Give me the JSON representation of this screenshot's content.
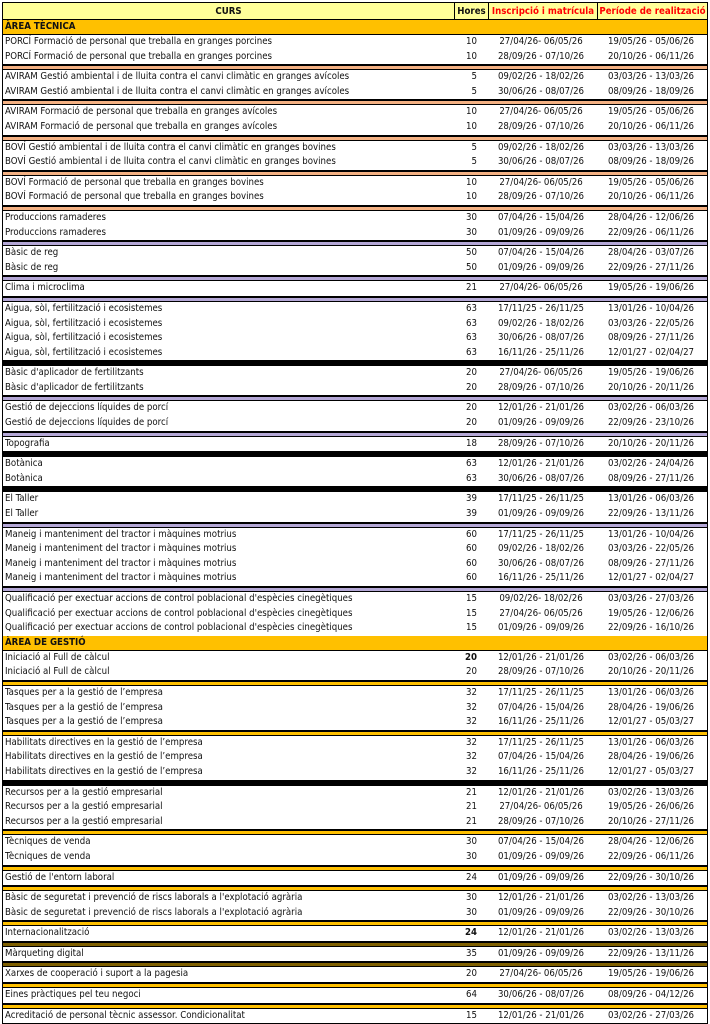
{
  "header": {
    "curs": "CURS",
    "hores": "Hores",
    "inscripcio": "Inscripció i matrícula",
    "periode": "Període de realització"
  },
  "colors": {
    "header_bg": "#ffff99",
    "section_bg": "#ffc000",
    "header_red": "#ff0000"
  },
  "sections": [
    {
      "title": "ÀREA TÈCNICA",
      "groups": [
        {
          "sep": "#f4b183",
          "rows": [
            {
              "curs": "PORCÍ Formació de personal que treballa en granges porcines",
              "hores": "10",
              "inscripcio": "27/04/26- 06/05/26",
              "periode": "19/05/26 - 05/06/26"
            },
            {
              "curs": "PORCÍ Formació de personal que treballa en granges porcines",
              "hores": "10",
              "inscripcio": "28/09/26 - 07/10/26",
              "periode": "20/10/26 - 06/11/26"
            }
          ]
        },
        {
          "sep": "#f4b183",
          "rows": [
            {
              "curs": "AVIRAM Gestió ambiental i de lluita contra el canvi climàtic en granges avícoles",
              "hores": "5",
              "inscripcio": "09/02/26 - 18/02/26",
              "periode": "03/03/26 - 13/03/26"
            },
            {
              "curs": "AVIRAM Gestió ambiental i de lluita contra el canvi climàtic en granges avícoles",
              "hores": "5",
              "inscripcio": "30/06/26 - 08/07/26",
              "periode": "08/09/26 - 18/09/26"
            }
          ]
        },
        {
          "sep": "#f4b183",
          "rows": [
            {
              "curs": "AVIRAM Formació de personal que treballa en granges avícoles",
              "hores": "10",
              "inscripcio": "27/04/26- 06/05/26",
              "periode": "19/05/26 - 05/06/26"
            },
            {
              "curs": "AVIRAM Formació de personal que treballa en granges avícoles",
              "hores": "10",
              "inscripcio": "28/09/26 - 07/10/26",
              "periode": "20/10/26 - 06/11/26"
            }
          ]
        },
        {
          "sep": "#f4b183",
          "rows": [
            {
              "curs": "BOVÍ Gestió ambiental i de lluita contra el canvi climàtic en granges bovines",
              "hores": "5",
              "inscripcio": "09/02/26 - 18/02/26",
              "periode": "03/03/26 - 13/03/26"
            },
            {
              "curs": "BOVÍ Gestió ambiental i de lluita contra el canvi climàtic en granges bovines",
              "hores": "5",
              "inscripcio": "30/06/26 - 08/07/26",
              "periode": "08/09/26 - 18/09/26"
            }
          ]
        },
        {
          "sep": "#f4b183",
          "rows": [
            {
              "curs": "BOVÍ Formació de personal que treballa en granges bovines",
              "hores": "10",
              "inscripcio": "27/04/26- 06/05/26",
              "periode": "19/05/26 - 05/06/26"
            },
            {
              "curs": "BOVÍ Formació de personal que treballa en granges bovines",
              "hores": "10",
              "inscripcio": "28/09/26 - 07/10/26",
              "periode": "20/10/26 - 06/11/26"
            }
          ]
        },
        {
          "sep": "#b4a7d6",
          "rows": [
            {
              "curs": "Produccions ramaderes",
              "hores": "30",
              "inscripcio": "07/04/26 - 15/04/26",
              "periode": "28/04/26 - 12/06/26"
            },
            {
              "curs": "Produccions ramaderes",
              "hores": "30",
              "inscripcio": "01/09/26 - 09/09/26",
              "periode": "22/09/26 - 06/11/26"
            }
          ]
        },
        {
          "sep": "#b4a7d6",
          "rows": [
            {
              "curs": "Bàsic de reg",
              "hores": "50",
              "inscripcio": "07/04/26 - 15/04/26",
              "periode": "28/04/26 - 03/07/26"
            },
            {
              "curs": "Bàsic de reg",
              "hores": "50",
              "inscripcio": "01/09/26 - 09/09/26",
              "periode": "22/09/26 - 27/11/26"
            }
          ]
        },
        {
          "sep": "#b4a7d6",
          "rows": [
            {
              "curs": "Clima i microclima",
              "hores": "21",
              "inscripcio": "27/04/26- 06/05/26",
              "periode": "19/05/26 - 19/06/26"
            }
          ]
        },
        {
          "sep": "#000000",
          "rows": [
            {
              "curs": "Aigua, sòl, fertilització i ecosistemes",
              "hores": "63",
              "inscripcio": "17/11/25 - 26/11/25",
              "periode": "13/01/26 - 10/04/26"
            },
            {
              "curs": "Aigua, sòl, fertilització i ecosistemes",
              "hores": "63",
              "inscripcio": "09/02/26 - 18/02/26",
              "periode": "03/03/26 - 22/05/26"
            },
            {
              "curs": "Aigua, sòl, fertilització i ecosistemes",
              "hores": "63",
              "inscripcio": "30/06/26 - 08/07/26",
              "periode": "08/09/26 - 27/11/26"
            },
            {
              "curs": "Aigua, sòl, fertilització i ecosistemes",
              "hores": "63",
              "inscripcio": "16/11/26 - 25/11/26",
              "periode": "12/01/27 - 02/04/27"
            }
          ]
        },
        {
          "sep": "#b4a7d6",
          "rows": [
            {
              "curs": "Bàsic d'aplicador de fertilitzants",
              "hores": "20",
              "inscripcio": "27/04/26- 06/05/26",
              "periode": "19/05/26 - 19/06/26"
            },
            {
              "curs": "Bàsic d'aplicador de fertilitzants",
              "hores": "20",
              "inscripcio": "28/09/26 - 07/10/26",
              "periode": "20/10/26 - 20/11/26"
            }
          ]
        },
        {
          "sep": "#b4a7d6",
          "rows": [
            {
              "curs": "Gestió de dejeccions líquides de porcí",
              "hores": "20",
              "inscripcio": "12/01/26 - 21/01/26",
              "periode": "03/02/26 - 06/03/26"
            },
            {
              "curs": "Gestió de dejeccions líquides de porcí",
              "hores": "20",
              "inscripcio": "01/09/26 - 09/09/26",
              "periode": "22/09/26 - 23/10/26"
            }
          ]
        },
        {
          "sep": "#000000",
          "rows": [
            {
              "curs": "Topografia",
              "hores": "18",
              "inscripcio": "28/09/26 - 07/10/26",
              "periode": "20/10/26 - 20/11/26"
            }
          ]
        },
        {
          "sep": "#000000",
          "rows": [
            {
              "curs": "Botànica",
              "hores": "63",
              "inscripcio": "12/01/26 - 21/01/26",
              "periode": "03/02/26 - 24/04/26"
            },
            {
              "curs": "Botànica",
              "hores": "63",
              "inscripcio": "30/06/26 - 08/07/26",
              "periode": "08/09/26 - 27/11/26"
            }
          ]
        },
        {
          "sep": "#b4a7d6",
          "rows": [
            {
              "curs": "El Taller",
              "hores": "39",
              "inscripcio": "17/11/25 - 26/11/25",
              "periode": "13/01/26 - 06/03/26"
            },
            {
              "curs": "El Taller",
              "hores": "39",
              "inscripcio": "01/09/26 - 09/09/26",
              "periode": "22/09/26 - 13/11/26"
            }
          ]
        },
        {
          "sep": "#b4a7d6",
          "rows": [
            {
              "curs": "Maneig i manteniment del tractor i màquines motrius",
              "hores": "60",
              "inscripcio": "17/11/25 - 26/11/25",
              "periode": "13/01/26 - 10/04/26"
            },
            {
              "curs": "Maneig i manteniment del tractor i màquines motrius",
              "hores": "60",
              "inscripcio": "09/02/26 - 18/02/26",
              "periode": "03/03/26 - 22/05/26"
            },
            {
              "curs": "Maneig i manteniment del tractor i màquines motrius",
              "hores": "60",
              "inscripcio": "30/06/26 - 08/07/26",
              "periode": "08/09/26 - 27/11/26"
            },
            {
              "curs": "Maneig i manteniment del tractor i màquines motrius",
              "hores": "60",
              "inscripcio": "16/11/26 - 25/11/26",
              "periode": "12/01/27 - 02/04/27"
            }
          ]
        },
        {
          "sep": "",
          "rows": [
            {
              "curs": "Qualificació per exectuar accions de control  poblacional d'espècies cinegètiques",
              "hores": "15",
              "inscripcio": "09/02/26- 18/02/26",
              "periode": "03/03/26 - 27/03/26"
            },
            {
              "curs": "Qualificació per exectuar accions de control  poblacional d'espècies cinegètiques",
              "hores": "15",
              "inscripcio": "27/04/26- 06/05/26",
              "periode": "19/05/26 - 12/06/26"
            },
            {
              "curs": "Qualificació per exectuar accions de control  poblacional d'espècies cinegètiques",
              "hores": "15",
              "inscripcio": "01/09/26 - 09/09/26",
              "periode": "22/09/26 - 16/10/26"
            }
          ]
        }
      ]
    },
    {
      "title": "ÀREA DE GESTIÓ",
      "groups": [
        {
          "sep": "#ffc000",
          "rows": [
            {
              "curs": "Iniciació al Full de càlcul",
              "hores": "20",
              "bold": true,
              "inscripcio": "12/01/26 - 21/01/26",
              "periode": "03/02/26 - 06/03/26"
            },
            {
              "curs": "Iniciació al Full de càlcul",
              "hores": "20",
              "inscripcio": "28/09/26 - 07/10/26",
              "periode": "20/10/26 - 20/11/26"
            }
          ]
        },
        {
          "sep": "#ffc000",
          "rows": [
            {
              "curs": "Tasques per a la gestió de l’empresa",
              "hores": "32",
              "inscripcio": "17/11/25 - 26/11/25",
              "periode": "13/01/26 - 06/03/26"
            },
            {
              "curs": "Tasques per a la gestió de l’empresa",
              "hores": "32",
              "inscripcio": "07/04/26 - 15/04/26",
              "periode": "28/04/26 - 19/06/26"
            },
            {
              "curs": "Tasques per a la gestió de l’empresa",
              "hores": "32",
              "inscripcio": "16/11/26 - 25/11/26",
              "periode": "12/01/27 - 05/03/27"
            }
          ]
        },
        {
          "sep": "#000000",
          "rows": [
            {
              "curs": "Habilitats directives en la gestió de l’empresa",
              "hores": "32",
              "inscripcio": "17/11/25 - 26/11/25",
              "periode": "13/01/26 - 06/03/26"
            },
            {
              "curs": "Habilitats directives en la gestió de l’empresa",
              "hores": "32",
              "inscripcio": "07/04/26 - 15/04/26",
              "periode": "28/04/26 - 19/06/26"
            },
            {
              "curs": "Habilitats directives en la gestió de l’empresa",
              "hores": "32",
              "inscripcio": "16/11/26 - 25/11/26",
              "periode": "12/01/27 - 05/03/27"
            }
          ]
        },
        {
          "sep": "#ffc000",
          "rows": [
            {
              "curs": "Recursos per a la gestió  empresarial",
              "hores": "21",
              "inscripcio": "12/01/26 - 21/01/26",
              "periode": "03/02/26 - 13/03/26"
            },
            {
              "curs": "Recursos per a la gestió  empresarial",
              "hores": "21",
              "inscripcio": "27/04/26- 06/05/26",
              "periode": "19/05/26 - 26/06/26"
            },
            {
              "curs": "Recursos per a la gestió  empresarial",
              "hores": "21",
              "inscripcio": "28/09/26 - 07/10/26",
              "periode": "20/10/26 - 27/11/26"
            }
          ]
        },
        {
          "sep": "#ffc000",
          "rows": [
            {
              "curs": "Tècniques de venda",
              "hores": "30",
              "inscripcio": "07/04/26 - 15/04/26",
              "periode": "28/04/26 - 12/06/26"
            },
            {
              "curs": "Tècniques de venda",
              "hores": "30",
              "inscripcio": "01/09/26 - 09/09/26",
              "periode": "22/09/26 - 06/11/26"
            }
          ]
        },
        {
          "sep": "#ffc000",
          "rows": [
            {
              "curs": "Gestió de l'entorn laboral",
              "hores": "24",
              "inscripcio": "01/09/26 - 09/09/26",
              "periode": "22/09/26 - 30/10/26"
            }
          ]
        },
        {
          "sep": "#ffc000",
          "rows": [
            {
              "curs": "Bàsic de seguretat i prevenció de riscs laborals a l'explotació agrària",
              "hores": "30",
              "inscripcio": "12/01/26 - 21/01/26",
              "periode": "03/02/26 - 13/03/26"
            },
            {
              "curs": "Bàsic de seguretat i prevenció de riscs laborals a l'explotació agrària",
              "hores": "30",
              "inscripcio": "01/09/26 - 09/09/26",
              "periode": "22/09/26 - 30/10/26"
            }
          ]
        },
        {
          "sep": "#7f6000",
          "rows": [
            {
              "curs": "Internacionalització",
              "hores": "24",
              "bold": true,
              "inscripcio": "12/01/26 - 21/01/26",
              "periode": "03/02/26 - 13/03/26"
            }
          ]
        },
        {
          "sep": "#7f6000",
          "rows": [
            {
              "curs": "Màrqueting digital",
              "hores": "35",
              "inscripcio": "01/09/26 - 09/09/26",
              "periode": "22/09/26 - 13/11/26"
            }
          ]
        },
        {
          "sep": "#ffc000",
          "rows": [
            {
              "curs": "Xarxes de cooperació i suport a la pagesia",
              "hores": "20",
              "inscripcio": "27/04/26- 06/05/26",
              "periode": "19/05/26 - 19/06/26"
            }
          ]
        },
        {
          "sep": "#ffc000",
          "rows": [
            {
              "curs": "Eines pràctiques pel teu negoci",
              "hores": "64",
              "inscripcio": "30/06/26 - 08/07/26",
              "periode": "08/09/26 - 04/12/26"
            }
          ]
        },
        {
          "sep": "",
          "rows": [
            {
              "curs": "Acreditació de personal tècnic assessor. Condicionalitat",
              "hores": "15",
              "inscripcio": "12/01/26 - 21/01/26",
              "periode": "03/02/26 - 27/03/26"
            }
          ]
        }
      ]
    }
  ]
}
